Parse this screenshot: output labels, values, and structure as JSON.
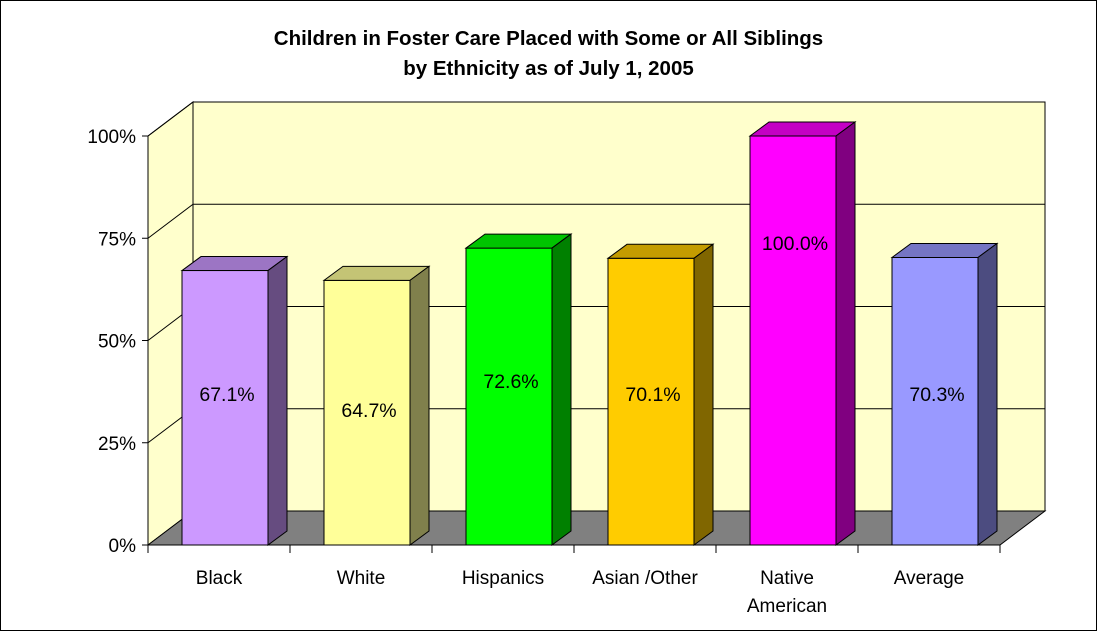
{
  "chart_data": {
    "type": "bar",
    "title_lines": [
      "Children in Foster Care Placed with Some or All Siblings",
      "by Ethnicity as of July 1, 2005"
    ],
    "categories": [
      [
        "Black"
      ],
      [
        "White"
      ],
      [
        "Hispanics"
      ],
      [
        "Asian /Other"
      ],
      [
        "Native",
        "American"
      ],
      [
        "Average"
      ]
    ],
    "values": [
      67.1,
      64.7,
      72.6,
      70.1,
      100.0,
      70.3
    ],
    "data_labels": [
      "67.1%",
      "64.7%",
      "72.6%",
      "70.1%",
      "100.0%",
      "70.3%"
    ],
    "ylim": [
      0,
      100
    ],
    "yticks": [
      {
        "value": 0,
        "label": "0%"
      },
      {
        "value": 25,
        "label": "25%"
      },
      {
        "value": 50,
        "label": "50%"
      },
      {
        "value": 75,
        "label": "75%"
      },
      {
        "value": 100,
        "label": "100%"
      }
    ],
    "style": "3d-column",
    "grid": true,
    "legend": "none",
    "colors": {
      "wall": "#ffffcc",
      "floor": "#808080",
      "bars": [
        {
          "front": "#cc99ff",
          "top": "#9c75c4",
          "side": "#664c80"
        },
        {
          "front": "#ffff99",
          "top": "#c4c475",
          "side": "#80804c"
        },
        {
          "front": "#00ff00",
          "top": "#00c400",
          "side": "#008000"
        },
        {
          "front": "#ffcc00",
          "top": "#c49c00",
          "side": "#806600"
        },
        {
          "front": "#ff00ff",
          "top": "#c400c4",
          "side": "#800080"
        },
        {
          "front": "#9999ff",
          "top": "#7575c4",
          "side": "#4c4c80"
        }
      ]
    }
  }
}
